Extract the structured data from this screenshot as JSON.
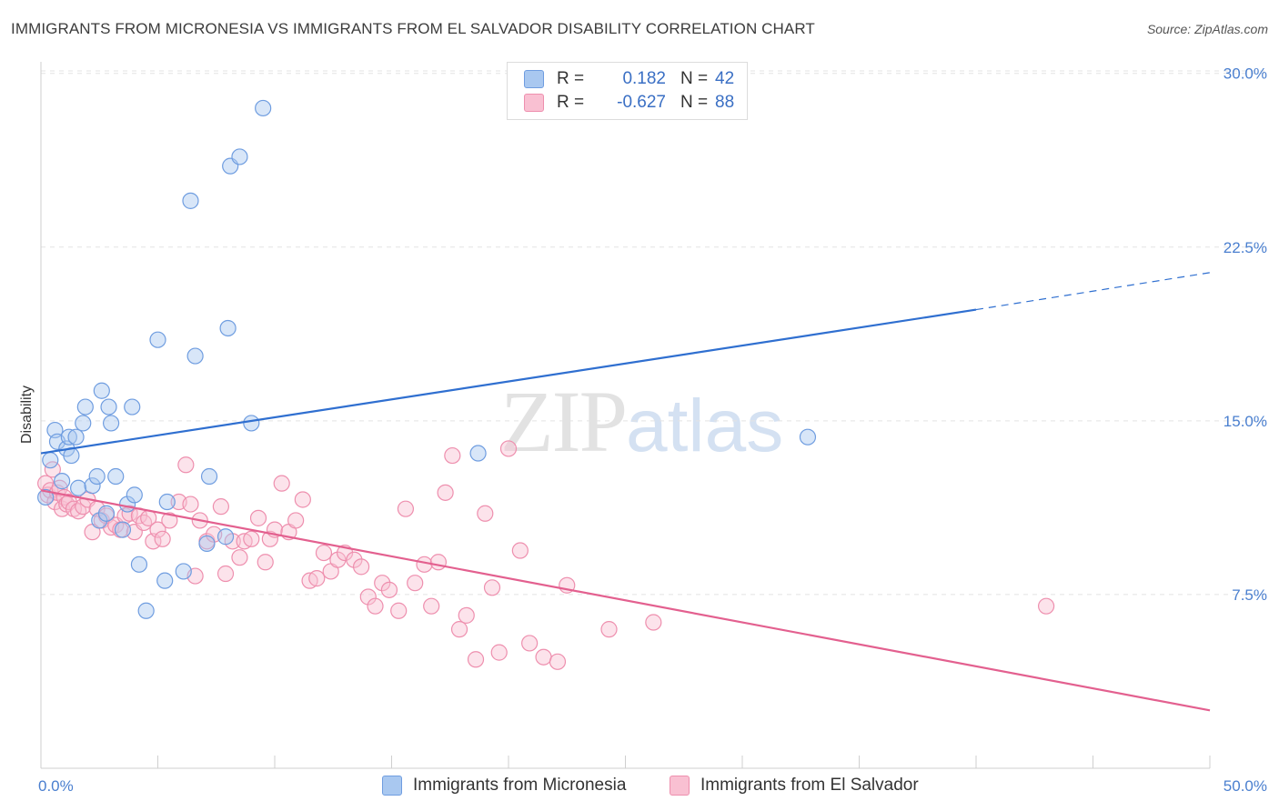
{
  "title": "IMMIGRANTS FROM MICRONESIA VS IMMIGRANTS FROM EL SALVADOR DISABILITY CORRELATION CHART",
  "source": "Source: ZipAtlas.com",
  "watermark": {
    "zip": "ZIP",
    "atlas": "atlas"
  },
  "legend": {
    "r_label": "R =",
    "n_label": "N =",
    "rows": [
      {
        "r": "0.182",
        "n": "42",
        "color": "#a9c8f0",
        "border": "#6f9de0"
      },
      {
        "r": "-0.627",
        "n": "88",
        "color": "#f9c0d2",
        "border": "#ee8fae"
      }
    ]
  },
  "bottom_legend": [
    {
      "label": "Immigrants from Micronesia",
      "color": "#a9c8f0",
      "border": "#6f9de0"
    },
    {
      "label": "Immigrants from El Salvador",
      "color": "#f9c0d2",
      "border": "#ee8fae"
    }
  ],
  "chart_data": {
    "type": "scatter",
    "title": "IMMIGRANTS FROM MICRONESIA VS IMMIGRANTS FROM EL SALVADOR DISABILITY CORRELATION CHART",
    "xlabel": "",
    "ylabel": "Disability",
    "xlim": [
      0,
      50
    ],
    "ylim": [
      0,
      30.5
    ],
    "x_tick_labels": [
      "0.0%",
      "50.0%"
    ],
    "y_ticks": [
      7.5,
      15.0,
      22.5,
      30.0
    ],
    "y_tick_labels": [
      "7.5%",
      "15.0%",
      "22.5%",
      "30.0%"
    ],
    "grid": true,
    "series": [
      {
        "name": "Immigrants from Micronesia",
        "color": "#6f9de0",
        "fill": "#a9c8f0",
        "line_color": "#2f6fd0",
        "trend": {
          "x0": 0,
          "y0": 13.6,
          "x1": 40,
          "y1": 19.8,
          "dash_to_x": 50,
          "dash_to_y": 21.4
        },
        "points": [
          [
            0.2,
            11.7
          ],
          [
            0.4,
            13.3
          ],
          [
            0.6,
            14.6
          ],
          [
            0.7,
            14.1
          ],
          [
            0.9,
            12.4
          ],
          [
            1.1,
            13.8
          ],
          [
            1.2,
            14.3
          ],
          [
            1.3,
            13.5
          ],
          [
            1.5,
            14.3
          ],
          [
            1.6,
            12.1
          ],
          [
            1.8,
            14.9
          ],
          [
            1.9,
            15.6
          ],
          [
            2.2,
            12.2
          ],
          [
            2.4,
            12.6
          ],
          [
            2.5,
            10.7
          ],
          [
            2.6,
            16.3
          ],
          [
            2.8,
            11.0
          ],
          [
            2.9,
            15.6
          ],
          [
            3.0,
            14.9
          ],
          [
            3.2,
            12.6
          ],
          [
            3.5,
            10.3
          ],
          [
            3.7,
            11.4
          ],
          [
            3.9,
            15.6
          ],
          [
            4.0,
            11.8
          ],
          [
            4.2,
            8.8
          ],
          [
            4.5,
            6.8
          ],
          [
            5.0,
            18.5
          ],
          [
            5.3,
            8.1
          ],
          [
            5.4,
            11.5
          ],
          [
            6.1,
            8.5
          ],
          [
            6.4,
            24.5
          ],
          [
            6.6,
            17.8
          ],
          [
            7.1,
            9.7
          ],
          [
            7.2,
            12.6
          ],
          [
            7.9,
            10.0
          ],
          [
            8.0,
            19.0
          ],
          [
            8.1,
            26.0
          ],
          [
            8.5,
            26.4
          ],
          [
            9.0,
            14.9
          ],
          [
            9.5,
            28.5
          ],
          [
            18.7,
            13.6
          ],
          [
            32.8,
            14.3
          ]
        ]
      },
      {
        "name": "Immigrants from El Salvador",
        "color": "#ee8fae",
        "fill": "#f9c0d2",
        "line_color": "#e3608f",
        "trend": {
          "x0": 0,
          "y0": 12.0,
          "x1": 50,
          "y1": 2.5
        },
        "points": [
          [
            0.2,
            12.3
          ],
          [
            0.3,
            11.8
          ],
          [
            0.4,
            12.0
          ],
          [
            0.5,
            12.9
          ],
          [
            0.6,
            11.5
          ],
          [
            0.7,
            11.9
          ],
          [
            0.8,
            12.1
          ],
          [
            0.9,
            11.2
          ],
          [
            1.0,
            11.7
          ],
          [
            1.1,
            11.4
          ],
          [
            1.2,
            11.5
          ],
          [
            1.4,
            11.2
          ],
          [
            1.6,
            11.1
          ],
          [
            1.8,
            11.3
          ],
          [
            2.0,
            11.6
          ],
          [
            2.2,
            10.2
          ],
          [
            2.4,
            11.2
          ],
          [
            2.6,
            10.7
          ],
          [
            2.8,
            10.9
          ],
          [
            3.0,
            10.4
          ],
          [
            3.2,
            10.5
          ],
          [
            3.4,
            10.3
          ],
          [
            3.6,
            10.9
          ],
          [
            3.8,
            11.0
          ],
          [
            4.0,
            10.2
          ],
          [
            4.2,
            10.9
          ],
          [
            4.4,
            10.6
          ],
          [
            4.6,
            10.8
          ],
          [
            4.8,
            9.8
          ],
          [
            5.0,
            10.3
          ],
          [
            5.2,
            9.9
          ],
          [
            5.5,
            10.7
          ],
          [
            5.9,
            11.5
          ],
          [
            6.2,
            13.1
          ],
          [
            6.4,
            11.4
          ],
          [
            6.6,
            8.3
          ],
          [
            6.8,
            10.7
          ],
          [
            7.1,
            9.8
          ],
          [
            7.4,
            10.1
          ],
          [
            7.7,
            11.3
          ],
          [
            7.9,
            8.4
          ],
          [
            8.2,
            9.8
          ],
          [
            8.5,
            9.1
          ],
          [
            8.7,
            9.8
          ],
          [
            9.0,
            9.9
          ],
          [
            9.3,
            10.8
          ],
          [
            9.6,
            8.9
          ],
          [
            9.8,
            9.9
          ],
          [
            10.0,
            10.3
          ],
          [
            10.3,
            12.3
          ],
          [
            10.6,
            10.2
          ],
          [
            10.9,
            10.7
          ],
          [
            11.2,
            11.6
          ],
          [
            11.5,
            8.1
          ],
          [
            11.8,
            8.2
          ],
          [
            12.1,
            9.3
          ],
          [
            12.4,
            8.5
          ],
          [
            12.7,
            9.0
          ],
          [
            13.0,
            9.3
          ],
          [
            13.4,
            9.0
          ],
          [
            13.7,
            8.7
          ],
          [
            14.0,
            7.4
          ],
          [
            14.3,
            7.0
          ],
          [
            14.6,
            8.0
          ],
          [
            14.9,
            7.7
          ],
          [
            15.3,
            6.8
          ],
          [
            15.6,
            11.2
          ],
          [
            16.0,
            8.0
          ],
          [
            16.4,
            8.8
          ],
          [
            16.7,
            7.0
          ],
          [
            17.0,
            8.9
          ],
          [
            17.3,
            11.9
          ],
          [
            17.6,
            13.5
          ],
          [
            17.9,
            6.0
          ],
          [
            18.2,
            6.6
          ],
          [
            18.6,
            4.7
          ],
          [
            19.0,
            11.0
          ],
          [
            19.3,
            7.8
          ],
          [
            19.6,
            5.0
          ],
          [
            20.0,
            13.8
          ],
          [
            20.5,
            9.4
          ],
          [
            20.9,
            5.4
          ],
          [
            21.5,
            4.8
          ],
          [
            22.1,
            4.6
          ],
          [
            22.5,
            7.9
          ],
          [
            24.3,
            6.0
          ],
          [
            26.2,
            6.3
          ],
          [
            43.0,
            7.0
          ]
        ]
      }
    ]
  }
}
